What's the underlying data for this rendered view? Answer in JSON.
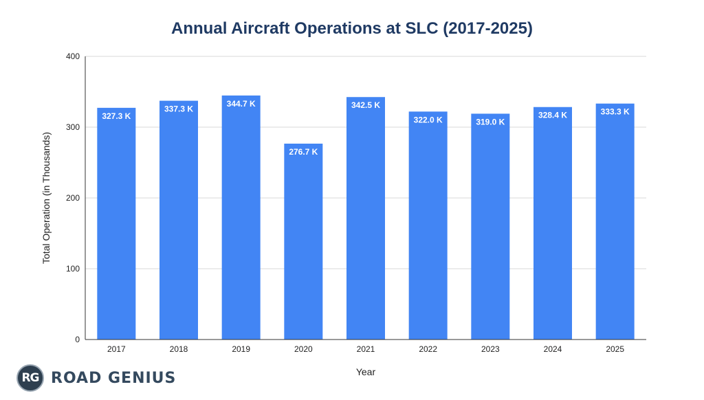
{
  "chart_data": {
    "type": "bar",
    "title": "Annual Aircraft Operations at SLC (2017-2025)",
    "xlabel": "Year",
    "ylabel": "Total Operation (in Thousands)",
    "categories": [
      "2017",
      "2018",
      "2019",
      "2020",
      "2021",
      "2022",
      "2023",
      "2024",
      "2025"
    ],
    "values": [
      327.3,
      337.3,
      344.7,
      276.7,
      342.5,
      322.0,
      319.0,
      328.4,
      333.3
    ],
    "data_labels": [
      "327.3 K",
      "337.3 K",
      "344.7 K",
      "276.7 K",
      "342.5 K",
      "322.0 K",
      "319.0 K",
      "328.4 K",
      "333.3 K"
    ],
    "ylim": [
      0,
      400
    ],
    "yticks": [
      "0",
      "100",
      "200",
      "300",
      "400"
    ],
    "grid": true,
    "bar_color": "#4285f4"
  },
  "brand": {
    "badge": "RG",
    "name": "ROAD GENIUS"
  }
}
